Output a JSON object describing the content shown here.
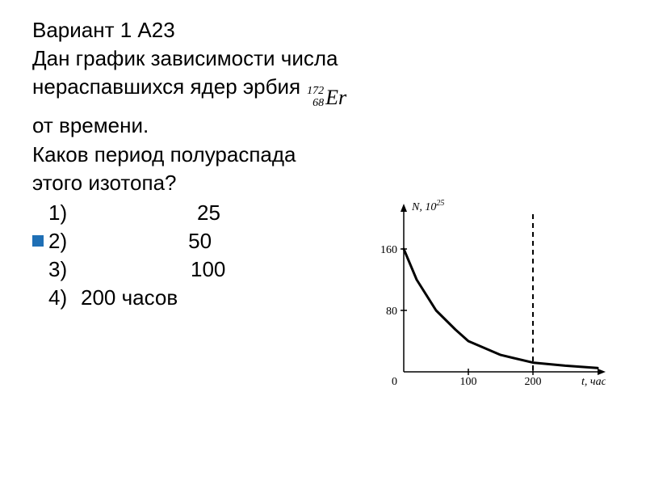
{
  "header": "Вариант 1 А23",
  "problem_line1": "Дан график зависимости числа",
  "problem_line2": "нераспавшихся ядер эрбия",
  "isotope": {
    "mass": "172",
    "z": "68",
    "symbol": "Er"
  },
  "problem_line3": "от времени.",
  "question_line1": "Каков период полураспада",
  "question_line2": "этого изотопа?",
  "options": {
    "o1": {
      "num": "1)",
      "val": "25"
    },
    "o2": {
      "num": "2)",
      "val": "50",
      "correct": true
    },
    "o3": {
      "num": "3)",
      "val": "100"
    },
    "o4": {
      "num": "4)",
      "val": "200 часов"
    }
  },
  "chart": {
    "type": "line",
    "y_label": "N, 10",
    "y_label_exp": "25",
    "x_label": "t, час",
    "x_ticks": [
      0,
      100,
      200
    ],
    "y_ticks": [
      80,
      160
    ],
    "xlim": [
      0,
      300
    ],
    "ylim": [
      0,
      200
    ],
    "curve": [
      {
        "x": 0,
        "y": 160
      },
      {
        "x": 20,
        "y": 120
      },
      {
        "x": 50,
        "y": 80
      },
      {
        "x": 80,
        "y": 55
      },
      {
        "x": 100,
        "y": 40
      },
      {
        "x": 150,
        "y": 22
      },
      {
        "x": 200,
        "y": 12
      },
      {
        "x": 250,
        "y": 8
      },
      {
        "x": 300,
        "y": 5
      }
    ],
    "tick_dashes_y": [
      80,
      160
    ],
    "tick_dashes_x": [
      100,
      200
    ],
    "axis_color": "#000000",
    "curve_color": "#000000",
    "curve_width": 3,
    "tick_fontsize": 14,
    "label_fontsize": 14,
    "label_font": "Times New Roman"
  }
}
